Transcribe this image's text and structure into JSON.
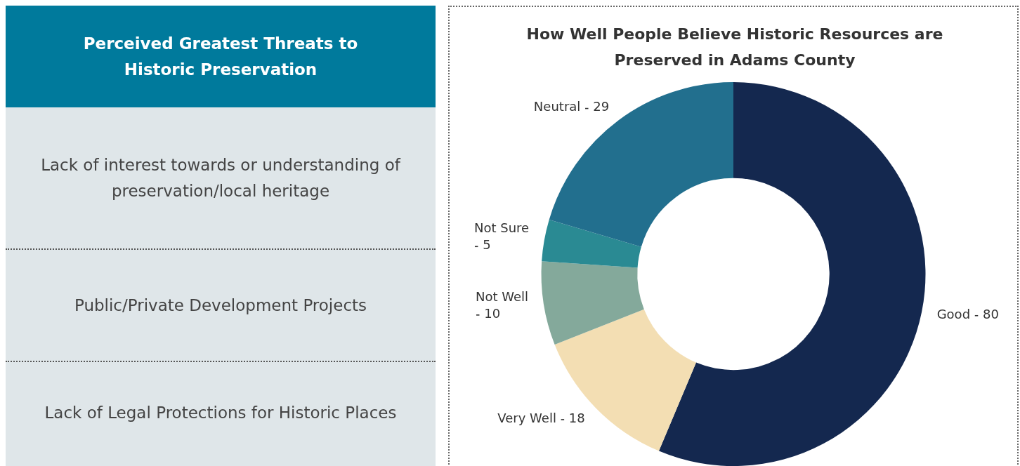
{
  "chart_data": [
    {
      "type": "other",
      "title": "Perceived Greatest Threats to Historic Preservation",
      "annotations": [
        "Lack of interest towards or understanding of preservation/local heritage",
        "Public/Private Development Projects",
        "Lack of Legal Protections for Historic Places"
      ]
    },
    {
      "type": "donut",
      "title": "How Well People Believe Historic Resources are Preserved in Adams County",
      "categories": [
        "Good",
        "Very Well",
        "Not Well",
        "Not Sure",
        "Neutral"
      ],
      "values": [
        80,
        18,
        10,
        5,
        29
      ],
      "colors": [
        "#14284f",
        "#f3deb3",
        "#84a99b",
        "#2a8a93",
        "#226f8e"
      ],
      "data_labels": true,
      "legend": false
    }
  ]
}
